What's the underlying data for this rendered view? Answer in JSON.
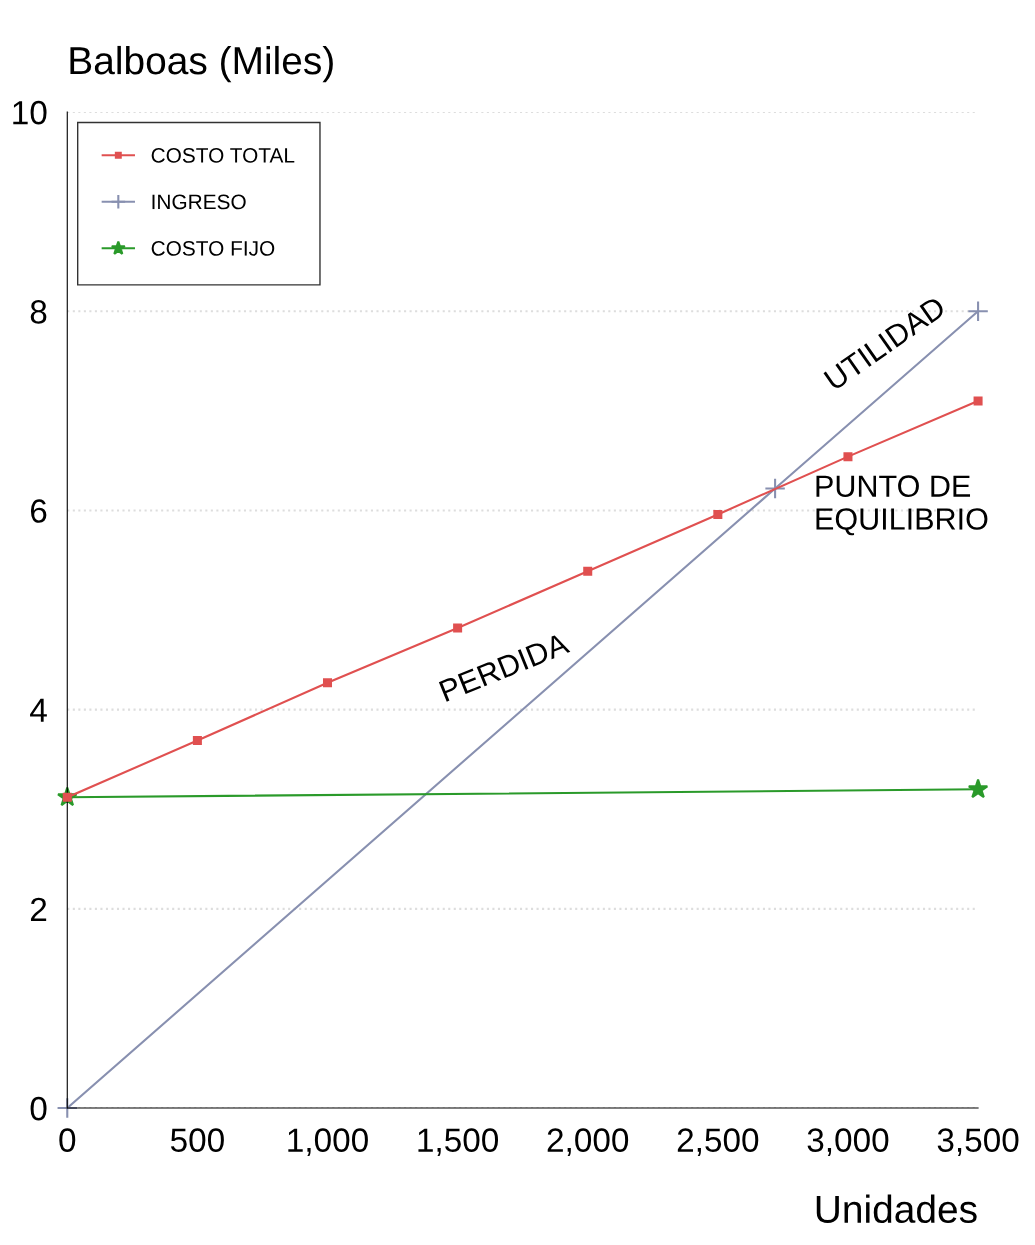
{
  "chart_data": {
    "type": "line",
    "xlabel": "Unidades",
    "ylabel": "Balboas (Miles)",
    "xlim": [
      0,
      3500
    ],
    "ylim": [
      0,
      10
    ],
    "xticks": [
      0,
      500,
      {
        "value": 1000,
        "label": "1,000"
      },
      {
        "value": 1500,
        "label": "1,500"
      },
      {
        "value": 2000,
        "label": "2,000"
      },
      {
        "value": 2500,
        "label": "2,500"
      },
      {
        "value": 3000,
        "label": "3,000"
      },
      {
        "value": 3500,
        "label": "3,500"
      }
    ],
    "yticks": [
      0,
      2,
      4,
      6,
      8,
      10
    ],
    "grid": "y",
    "legend": "top left",
    "series": [
      {
        "name": "COSTO TOTAL",
        "color": "#e05050",
        "marker": "square",
        "x": [
          0,
          500,
          1000,
          1500,
          2000,
          2500,
          3000,
          3500
        ],
        "values": [
          3.12,
          3.69,
          4.27,
          4.82,
          5.39,
          5.96,
          6.54,
          7.1
        ]
      },
      {
        "name": "INGRESO",
        "color": "#8890b0",
        "marker": "cross",
        "x": [
          0,
          2720,
          3500
        ],
        "values": [
          0,
          6.22,
          8.0
        ]
      },
      {
        "name": "COSTO FIJO",
        "color": "#2a9a2a",
        "marker": "star",
        "x": [
          0,
          3500
        ],
        "values": [
          3.12,
          3.2
        ]
      }
    ],
    "annotations": [
      {
        "text": "UTILIDAD",
        "x": 3200,
        "y": 7.35
      },
      {
        "text": "PUNTO DE\nEQUILIBRIO",
        "x": 2720,
        "y": 6.22
      },
      "PERDIDA"
    ]
  }
}
